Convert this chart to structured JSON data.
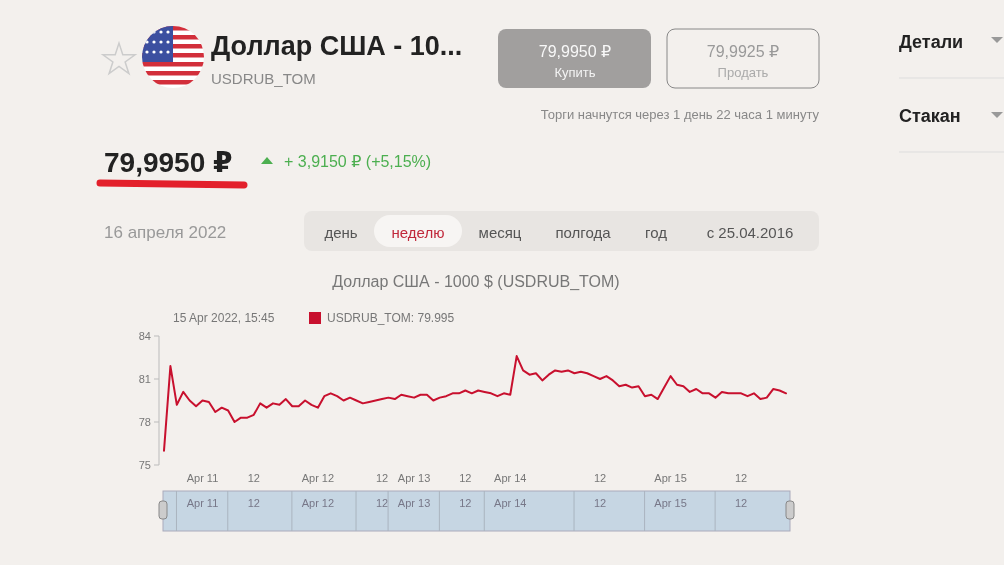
{
  "chart_data": {
    "type": "line",
    "title": "Доллар США - 1000 $ (USDRUB_TOM)",
    "legend_title": "15 Apr 2022, 15:45",
    "legend": "top left",
    "marker": "none",
    "line_style": "solid",
    "grid": false,
    "categories": [
      null,
      null,
      null,
      null,
      null,
      null,
      "Apr 11",
      null,
      null,
      null,
      null,
      null,
      null,
      null,
      "12",
      null,
      null,
      null,
      null,
      null,
      null,
      null,
      null,
      null,
      "Apr 12",
      null,
      null,
      null,
      null,
      null,
      null,
      null,
      null,
      null,
      "12",
      null,
      null,
      null,
      null,
      "Apr 13",
      null,
      null,
      null,
      null,
      null,
      null,
      null,
      "12",
      null,
      null,
      null,
      null,
      null,
      null,
      "Apr 14",
      null,
      null,
      null,
      null,
      null,
      null,
      null,
      null,
      null,
      null,
      null,
      null,
      null,
      "12",
      null,
      null,
      null,
      null,
      null,
      null,
      null,
      null,
      null,
      null,
      "Apr 15",
      null,
      null,
      null,
      null,
      null,
      null,
      null,
      null,
      null,
      null,
      "12",
      null,
      null,
      null,
      null,
      null,
      null,
      null
    ],
    "series": [
      {
        "name": "USDRUB_TOM: 79.995",
        "color": "#c8102e",
        "values": [
          76.0,
          81.9,
          79.2,
          80.1,
          79.5,
          79.1,
          79.5,
          79.4,
          78.7,
          79.0,
          78.8,
          78.0,
          78.3,
          78.3,
          78.5,
          79.3,
          79.0,
          79.3,
          79.2,
          79.6,
          79.1,
          79.1,
          79.5,
          79.2,
          79.0,
          79.8,
          80.0,
          79.8,
          79.5,
          79.7,
          79.5,
          79.3,
          79.4,
          79.5,
          79.6,
          79.7,
          79.6,
          79.9,
          79.8,
          79.7,
          79.9,
          79.9,
          79.5,
          79.7,
          79.8,
          80.0,
          80.0,
          80.2,
          80.0,
          80.2,
          80.1,
          80.0,
          79.8,
          80.0,
          79.9,
          82.6,
          81.6,
          81.3,
          81.4,
          80.9,
          81.3,
          81.6,
          81.5,
          81.6,
          81.4,
          81.5,
          81.4,
          81.2,
          81.0,
          81.2,
          80.9,
          80.5,
          80.6,
          80.4,
          80.5,
          79.8,
          79.9,
          79.6,
          80.4,
          81.2,
          80.6,
          80.5,
          80.1,
          80.3,
          80.0,
          80.0,
          79.7,
          80.1,
          80.0,
          80.0,
          80.0,
          79.8,
          80.0,
          79.6,
          79.7,
          80.3,
          80.2,
          80.0
        ]
      }
    ],
    "ylim": [
      75,
      84
    ],
    "yticks": [
      75,
      78,
      81,
      84
    ],
    "annotations": [
      "Доллар США - 10...",
      "USDRUB_TOM",
      "79,9950 ₽",
      "Купить",
      "79,9925 ₽",
      "Продать",
      "Торги начнутся через 1 день 22 часа 1 минуту",
      "79,9950 ₽",
      "+ 3,9150 ₽ (+5,15%)",
      "16 апреля 2022",
      "день",
      "неделю",
      "месяц",
      "полгода",
      "год",
      "с 25.04.2016",
      "Детали",
      "Стакан"
    ]
  }
}
